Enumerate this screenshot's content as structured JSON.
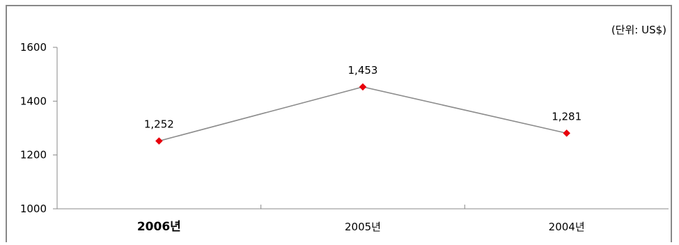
{
  "chart_data": {
    "type": "line",
    "unit_note": "(단위: US$)",
    "categories": [
      "2006년",
      "2005년",
      "2004년"
    ],
    "series": [
      {
        "values": [
          1252,
          1453,
          1281
        ],
        "data_labels": [
          "1,252",
          "1,453",
          "1,281"
        ],
        "line_color": "#8c8c8c",
        "marker_color": "#e8000b",
        "marker": "diamond"
      }
    ],
    "ylim": [
      1000,
      1600
    ],
    "y_ticks": [
      1000,
      1200,
      1400,
      1600
    ],
    "y_tick_labels": [
      "1000",
      "1200",
      "1400",
      "1600"
    ],
    "grid": false,
    "highlighted_category_index": 0,
    "frame_color": "#888888"
  }
}
